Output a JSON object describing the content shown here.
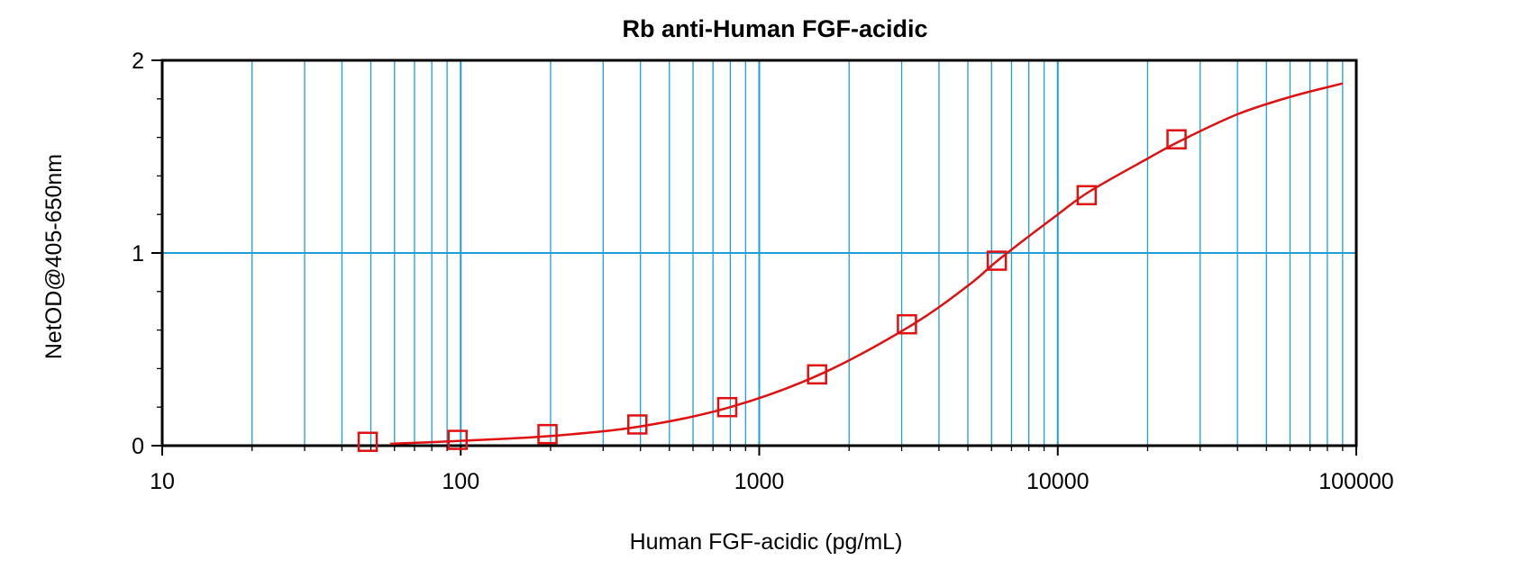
{
  "chart_data": {
    "type": "scatter",
    "title": "Rb anti-Human FGF-acidic",
    "xlabel": "Human FGF-acidic (pg/mL)",
    "ylabel": "NetOD@405-650nm",
    "x_scale": "log",
    "xlim": [
      10,
      100000
    ],
    "ylim": [
      0,
      2
    ],
    "x_ticks": [
      "10",
      "100",
      "1000",
      "10000",
      "100000"
    ],
    "y_ticks": [
      "0",
      "1",
      "2"
    ],
    "grid": true,
    "colors": {
      "grid": "#1e9fd8",
      "data": "#e01010",
      "axis": "#000000"
    },
    "series": [
      {
        "marker": "square-open",
        "x": [
          48.8,
          97.6,
          195.3,
          390.6,
          781.3,
          1562.5,
          3125,
          6250,
          12500,
          25000
        ],
        "y": [
          0.02,
          0.03,
          0.06,
          0.11,
          0.2,
          0.37,
          0.63,
          0.96,
          1.3,
          1.59
        ]
      }
    ],
    "fit_curve": {
      "x": [
        58,
        100,
        200,
        400,
        800,
        1600,
        3200,
        5000,
        6400,
        10000,
        12800,
        20000,
        25600,
        40000,
        60000,
        90000
      ],
      "y": [
        0.01,
        0.025,
        0.05,
        0.1,
        0.2,
        0.37,
        0.62,
        0.83,
        0.97,
        1.2,
        1.32,
        1.49,
        1.58,
        1.72,
        1.81,
        1.88
      ]
    }
  }
}
